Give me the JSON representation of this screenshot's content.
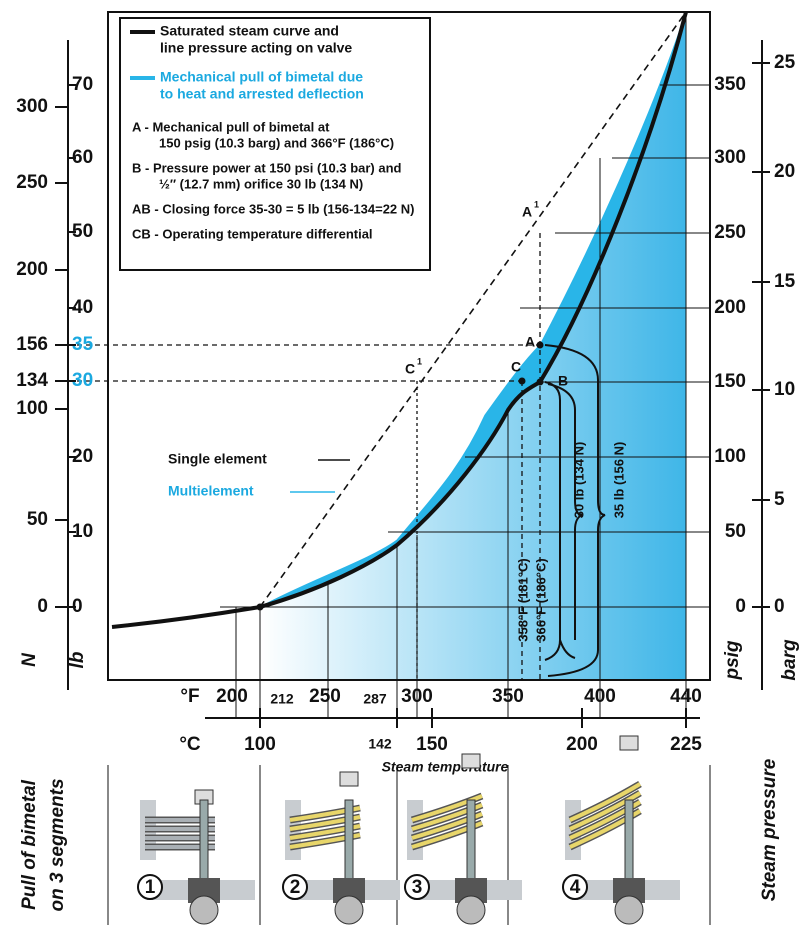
{
  "legend": {
    "black": [
      "Saturated steam curve and",
      "line pressure acting on valve"
    ],
    "blue": [
      "Mechanical pull of bimetal due",
      "to heat and arrested deflection"
    ],
    "notes": [
      [
        "A - Mechanical pull of bimetal at",
        "150 psig (10.3 barg) and 366°F (186°C)"
      ],
      [
        "B - Pressure power at 150 psi (10.3 bar) and",
        "½″ (12.7 mm) orifice 30 lb (134 N)"
      ],
      [
        "AB - Closing force 35-30 = 5 lb (156-134=22 N)"
      ],
      [
        "CB - Operating temperature differential"
      ]
    ]
  },
  "axes": {
    "n": {
      "label": "N",
      "ticks": [
        "300",
        "250",
        "200",
        "156",
        "134",
        "100",
        "50",
        "0"
      ]
    },
    "lb": {
      "label": "lb",
      "ticks": [
        "70",
        "60",
        "50",
        "40",
        "35",
        "30",
        "20",
        "10",
        "0"
      ]
    },
    "psig": {
      "label": "psig",
      "ticks": [
        "350",
        "300",
        "250",
        "200",
        "150",
        "100",
        "50",
        "0"
      ]
    },
    "barg": {
      "label": "barg",
      "ticks": [
        "25",
        "20",
        "15",
        "10",
        "5",
        "0"
      ]
    },
    "fahrenheit": {
      "label": "°F",
      "ticks": [
        "200",
        "212",
        "250",
        "287",
        "300",
        "350",
        "400",
        "440"
      ]
    },
    "celsius": {
      "label": "°C",
      "ticks": [
        "100",
        "142",
        "150",
        "200",
        "225"
      ]
    },
    "x_title": "Steam temperature",
    "pull_title": [
      "Pull of bimetal",
      "on 3 segments"
    ],
    "pressure_title": "Steam pressure"
  },
  "points": {
    "A": "A",
    "B": "B",
    "C": "C",
    "A1": "A",
    "A1_sup": "1",
    "C1": "C",
    "C1_sup": "1"
  },
  "annotations": {
    "single": "Single element",
    "multi": "Multielement",
    "t358": "358°F (181°C)",
    "t366": "366°F (186°C)",
    "f30": "30 lb (134 N)",
    "f35": "35 lb (156 N)"
  },
  "steps": [
    "1",
    "2",
    "3",
    "4"
  ]
}
